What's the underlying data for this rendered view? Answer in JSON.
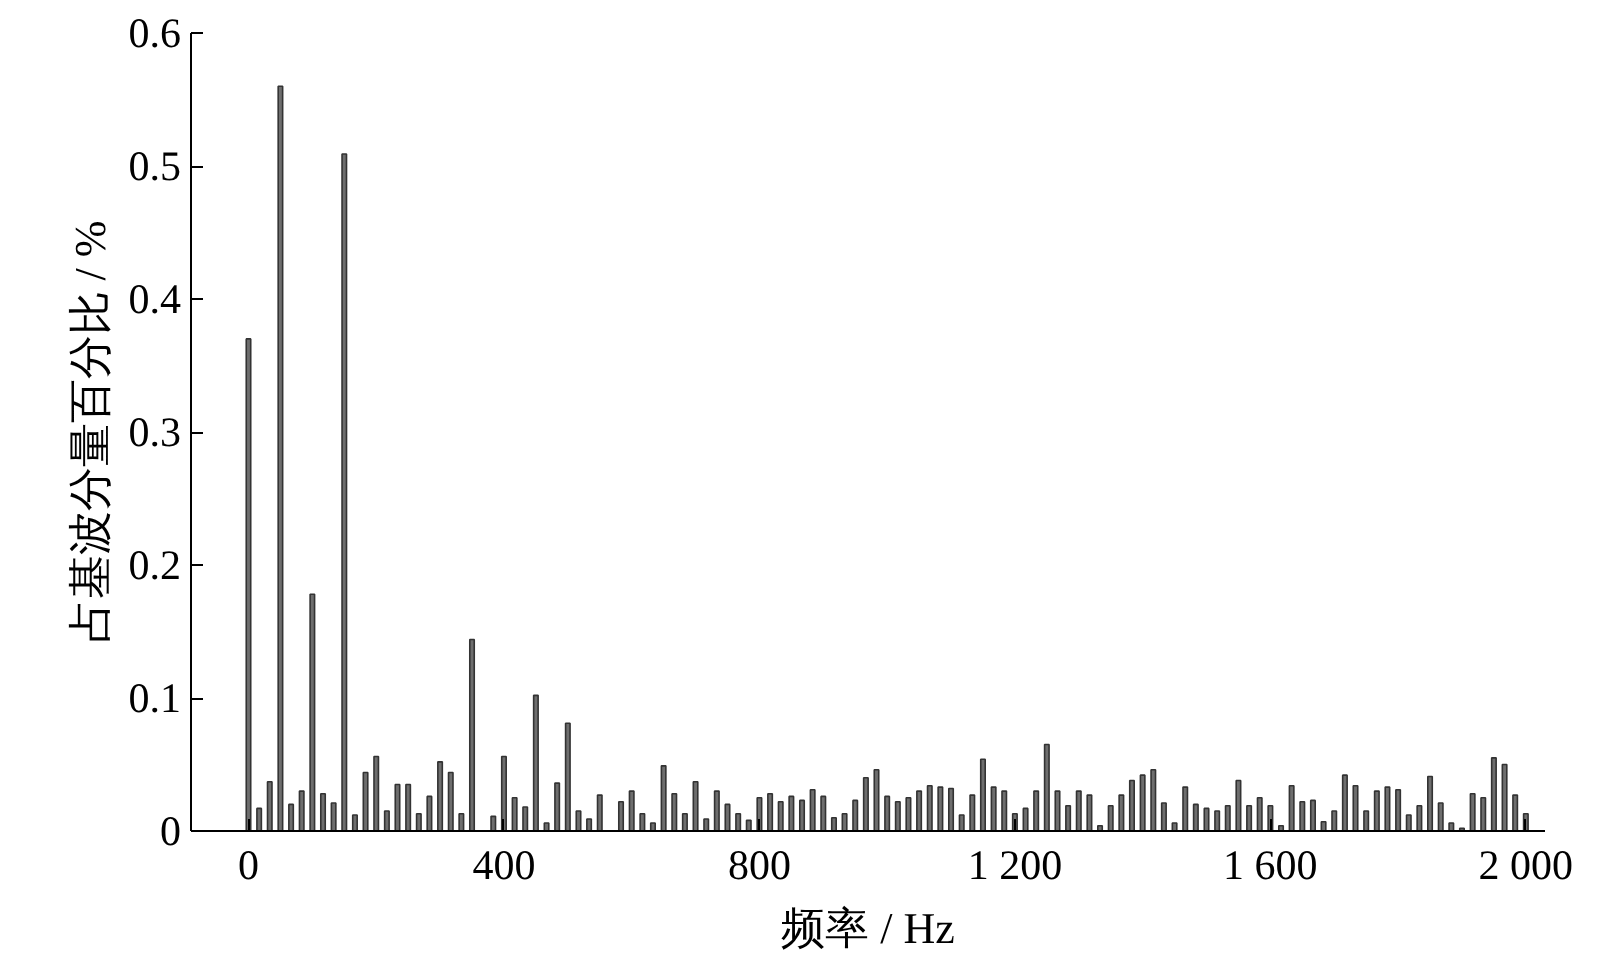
{
  "chart_data": {
    "type": "bar",
    "xlabel": "频率 / Hz",
    "ylabel": "占基波分量百分比 / %",
    "x": [
      0,
      16.7,
      33.3,
      50,
      66.7,
      83.3,
      100,
      116.7,
      133.3,
      150,
      166.7,
      183.3,
      200,
      216.7,
      233.3,
      250,
      266.7,
      283.3,
      300,
      316.7,
      333.3,
      350,
      366.7,
      383.3,
      400,
      416.7,
      433.3,
      450,
      466.7,
      483.3,
      500,
      516.7,
      533.3,
      550,
      566.7,
      583.3,
      600,
      616.7,
      633.3,
      650,
      666.7,
      683.3,
      700,
      716.7,
      733.3,
      750,
      766.7,
      783.3,
      800,
      816.7,
      833.3,
      850,
      866.7,
      883.3,
      900,
      916.7,
      933.3,
      950,
      966.7,
      983.3,
      1000,
      1016.7,
      1033.3,
      1050,
      1066.7,
      1083.3,
      1100,
      1116.7,
      1133.3,
      1150,
      1166.7,
      1183.3,
      1200,
      1216.7,
      1233.3,
      1250,
      1266.7,
      1283.3,
      1300,
      1316.7,
      1333.3,
      1350,
      1366.7,
      1383.3,
      1400,
      1416.7,
      1433.3,
      1450,
      1466.7,
      1483.3,
      1500,
      1516.7,
      1533.3,
      1550,
      1566.7,
      1583.3,
      1600,
      1616.7,
      1633.3,
      1650,
      1666.7,
      1683.3,
      1700,
      1716.7,
      1733.3,
      1750,
      1766.7,
      1783.3,
      1800,
      1816.7,
      1833.3,
      1850,
      1866.7,
      1883.3,
      1900,
      1916.7,
      1933.3,
      1950,
      1966.7,
      1983.3,
      2000
    ],
    "values": [
      0.37,
      0.017,
      0.037,
      0.56,
      0.02,
      0.03,
      0.178,
      0.028,
      0.021,
      0.509,
      0.012,
      0.044,
      0.056,
      0.015,
      0.035,
      0.035,
      0.013,
      0.026,
      0.052,
      0.044,
      0.013,
      0.144,
      null,
      0.011,
      0.056,
      0.025,
      0.018,
      0.102,
      0.006,
      0.036,
      0.081,
      0.015,
      0.009,
      0.027,
      null,
      0.022,
      0.03,
      0.013,
      0.006,
      0.049,
      0.028,
      0.013,
      0.037,
      0.009,
      0.03,
      0.02,
      0.013,
      0.008,
      0.025,
      0.028,
      0.022,
      0.026,
      0.023,
      0.031,
      0.026,
      0.01,
      0.013,
      0.023,
      0.04,
      0.046,
      0.026,
      0.022,
      0.025,
      0.03,
      0.034,
      0.033,
      0.032,
      0.012,
      0.027,
      0.054,
      0.033,
      0.03,
      0.013,
      0.017,
      0.03,
      0.065,
      0.03,
      0.019,
      0.03,
      0.027,
      0.004,
      0.019,
      0.027,
      0.038,
      0.042,
      0.046,
      0.021,
      0.006,
      0.033,
      0.02,
      0.017,
      0.015,
      0.019,
      0.038,
      0.019,
      0.025,
      0.019,
      0.004,
      0.034,
      0.022,
      0.023,
      0.007,
      0.015,
      0.042,
      0.034,
      0.015,
      0.03,
      0.033,
      0.031,
      0.012,
      0.019,
      0.041,
      0.021,
      0.006,
      0.002,
      0.028,
      0.025,
      0.055,
      0.05,
      0.027,
      0.013
    ],
    "color": "#6e6e6e",
    "xlim": [
      -90,
      2030
    ],
    "ylim": [
      0,
      0.6
    ],
    "xticks": [
      0,
      400,
      800,
      {
        "value": 1200,
        "label": "1 200"
      },
      {
        "value": 1600,
        "label": "1 600"
      },
      {
        "value": 2000,
        "label": "2 000"
      }
    ],
    "yticks": [
      0,
      0.1,
      0.2,
      0.3,
      0.4,
      0.5,
      0.6
    ],
    "grid": false
  }
}
